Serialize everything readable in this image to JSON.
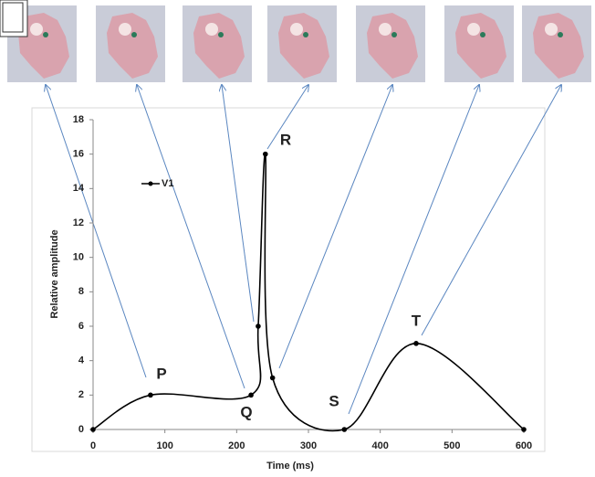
{
  "chart_data": {
    "type": "line",
    "x": [
      0,
      80,
      220,
      230,
      240,
      250,
      350,
      450,
      600
    ],
    "series": [
      {
        "name": "V1",
        "color": "#000000",
        "values": [
          0,
          2,
          2,
          6,
          16,
          3,
          0,
          5,
          0
        ]
      }
    ],
    "xlabel": "Time (ms)",
    "ylabel": "Relative amplitude",
    "xlim": [
      0,
      600
    ],
    "ylim": [
      0,
      18
    ],
    "xticks": [
      0,
      100,
      200,
      300,
      400,
      500,
      600
    ],
    "yticks": [
      0,
      2,
      4,
      6,
      8,
      10,
      12,
      14,
      16,
      18
    ],
    "annotations": [
      "P",
      "Q",
      "R",
      "S",
      "T"
    ],
    "smooth": true,
    "grid": false
  }
}
